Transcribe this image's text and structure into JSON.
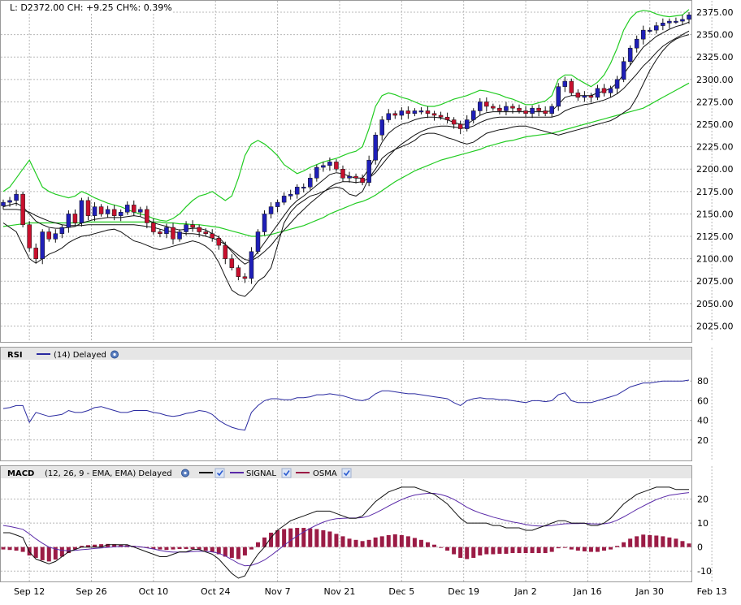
{
  "header": {
    "quote": "L: D2372.00 CH: +9.25 CH%: 0.39%"
  },
  "rsi_header": {
    "name": "RSI",
    "params": "(14) Delayed"
  },
  "macd_header": {
    "name": "MACD",
    "params": "(12, 26, 9 - EMA, EMA) Delayed",
    "signal_label": "SIGNAL",
    "osma_label": "OSMA"
  },
  "colors": {
    "up_candle": "#1f1fb8",
    "down_candle": "#c8102e",
    "bollinger": "#22cc22",
    "ma": "#111111",
    "rsi_line": "#2a2aa0",
    "macd_line": "#111111",
    "signal_line": "#5a2aa8",
    "osma_bar": "#9b1b45",
    "grid": "#b8b8b8"
  },
  "chart_data": [
    {
      "type": "candlestick",
      "title": "",
      "x_tick_labels": [
        "Sep 12",
        "Sep 26",
        "Oct 10",
        "Oct 24",
        "Nov 7",
        "Nov 21",
        "Dec 5",
        "Dec 19",
        "Jan 2",
        "Jan 16",
        "Jan 30",
        "Feb 13"
      ],
      "y_ticks": [
        2025,
        2050,
        2075,
        2100,
        2125,
        2150,
        2175,
        2200,
        2225,
        2250,
        2275,
        2300,
        2325,
        2350,
        2375
      ],
      "y_tick_labels": [
        "2025.00",
        "2050.00",
        "2075.00",
        "2100.00",
        "2125.00",
        "2150.00",
        "2175.00",
        "2200.00",
        "2225.00",
        "2250.00",
        "2275.00",
        "2300.00",
        "2325.00",
        "2350.00",
        "2375.00"
      ],
      "ylim": [
        2010,
        2385
      ],
      "grid": true,
      "legend": "none",
      "close": [
        2163,
        2165,
        2172,
        2138,
        2112,
        2100,
        2130,
        2122,
        2128,
        2135,
        2150,
        2140,
        2165,
        2148,
        2158,
        2150,
        2155,
        2148,
        2152,
        2160,
        2152,
        2155,
        2140,
        2130,
        2128,
        2135,
        2122,
        2130,
        2138,
        2135,
        2130,
        2128,
        2123,
        2115,
        2100,
        2090,
        2080,
        2078,
        2108,
        2130,
        2150,
        2158,
        2163,
        2170,
        2172,
        2180,
        2180,
        2190,
        2202,
        2204,
        2208,
        2200,
        2190,
        2192,
        2190,
        2185,
        2210,
        2238,
        2255,
        2262,
        2260,
        2265,
        2262,
        2265,
        2265,
        2262,
        2260,
        2258,
        2255,
        2250,
        2245,
        2255,
        2265,
        2275,
        2270,
        2268,
        2265,
        2270,
        2268,
        2265,
        2262,
        2268,
        2265,
        2262,
        2270,
        2292,
        2298,
        2285,
        2280,
        2282,
        2280,
        2290,
        2285,
        2290,
        2300,
        2320,
        2335,
        2345,
        2355,
        2355,
        2360,
        2363,
        2365,
        2365,
        2367,
        2372
      ],
      "bollinger_upper": [
        2175,
        2180,
        2190,
        2200,
        2210,
        2195,
        2180,
        2175,
        2172,
        2170,
        2168,
        2170,
        2175,
        2172,
        2168,
        2165,
        2162,
        2160,
        2158,
        2155,
        2152,
        2150,
        2148,
        2145,
        2143,
        2142,
        2145,
        2150,
        2158,
        2165,
        2170,
        2172,
        2175,
        2170,
        2165,
        2170,
        2190,
        2215,
        2228,
        2232,
        2228,
        2222,
        2215,
        2205,
        2200,
        2195,
        2198,
        2202,
        2205,
        2208,
        2210,
        2212,
        2215,
        2218,
        2220,
        2225,
        2245,
        2270,
        2282,
        2285,
        2283,
        2280,
        2278,
        2275,
        2272,
        2270,
        2270,
        2272,
        2275,
        2278,
        2280,
        2282,
        2285,
        2288,
        2287,
        2285,
        2283,
        2280,
        2278,
        2275,
        2272,
        2272,
        2274,
        2276,
        2282,
        2300,
        2305,
        2305,
        2300,
        2296,
        2292,
        2297,
        2305,
        2318,
        2335,
        2355,
        2368,
        2375,
        2377,
        2376,
        2373,
        2371,
        2370,
        2371,
        2372,
        2378
      ],
      "bollinger_lower": [
        2140,
        2135,
        2130,
        2115,
        2100,
        2095,
        2100,
        2105,
        2108,
        2112,
        2118,
        2122,
        2125,
        2126,
        2128,
        2130,
        2132,
        2133,
        2130,
        2125,
        2120,
        2118,
        2115,
        2112,
        2110,
        2112,
        2114,
        2116,
        2118,
        2120,
        2118,
        2114,
        2108,
        2096,
        2080,
        2065,
        2060,
        2058,
        2065,
        2075,
        2080,
        2090,
        2115,
        2140,
        2152,
        2160,
        2165,
        2170,
        2172,
        2175,
        2178,
        2180,
        2178,
        2172,
        2170,
        2175,
        2190,
        2200,
        2212,
        2218,
        2222,
        2225,
        2228,
        2232,
        2238,
        2240,
        2240,
        2238,
        2235,
        2233,
        2230,
        2228,
        2230,
        2235,
        2240,
        2242,
        2244,
        2245,
        2247,
        2248,
        2248,
        2246,
        2244,
        2242,
        2240,
        2238,
        2240,
        2242,
        2244,
        2246,
        2248,
        2250,
        2252,
        2254,
        2258,
        2263,
        2268,
        2280,
        2295,
        2310,
        2322,
        2332,
        2340,
        2345,
        2348,
        2350
      ],
      "ma_fast": [
        2158,
        2160,
        2162,
        2158,
        2150,
        2142,
        2138,
        2135,
        2134,
        2134,
        2135,
        2136,
        2140,
        2142,
        2144,
        2145,
        2146,
        2146,
        2146,
        2147,
        2148,
        2147,
        2144,
        2140,
        2138,
        2136,
        2134,
        2132,
        2133,
        2134,
        2134,
        2132,
        2128,
        2124,
        2116,
        2108,
        2100,
        2094,
        2098,
        2108,
        2118,
        2128,
        2138,
        2148,
        2158,
        2165,
        2170,
        2176,
        2182,
        2188,
        2194,
        2196,
        2195,
        2192,
        2190,
        2190,
        2200,
        2215,
        2230,
        2240,
        2246,
        2250,
        2252,
        2255,
        2257,
        2258,
        2258,
        2257,
        2255,
        2252,
        2250,
        2250,
        2255,
        2260,
        2263,
        2264,
        2264,
        2264,
        2264,
        2264,
        2264,
        2264,
        2264,
        2264,
        2265,
        2272,
        2280,
        2282,
        2282,
        2282,
        2282,
        2285,
        2287,
        2290,
        2296,
        2306,
        2316,
        2326,
        2336,
        2342,
        2348,
        2352,
        2356,
        2359,
        2361,
        2364
      ],
      "ma_mid": [
        2155,
        2155,
        2155,
        2154,
        2152,
        2148,
        2145,
        2142,
        2140,
        2138,
        2137,
        2137,
        2137,
        2138,
        2138,
        2138,
        2138,
        2138,
        2138,
        2138,
        2138,
        2137,
        2136,
        2135,
        2133,
        2131,
        2130,
        2129,
        2128,
        2128,
        2127,
        2125,
        2123,
        2120,
        2116,
        2110,
        2104,
        2099,
        2098,
        2102,
        2108,
        2115,
        2124,
        2132,
        2140,
        2148,
        2155,
        2162,
        2168,
        2174,
        2180,
        2184,
        2186,
        2186,
        2185,
        2186,
        2190,
        2196,
        2205,
        2214,
        2222,
        2228,
        2233,
        2238,
        2242,
        2245,
        2247,
        2248,
        2248,
        2247,
        2246,
        2246,
        2248,
        2252,
        2255,
        2257,
        2258,
        2258,
        2258,
        2258,
        2258,
        2258,
        2258,
        2258,
        2258,
        2260,
        2265,
        2268,
        2270,
        2272,
        2273,
        2275,
        2277,
        2280,
        2284,
        2290,
        2298,
        2306,
        2315,
        2322,
        2330,
        2337,
        2342,
        2346,
        2350,
        2354
      ],
      "ma_slow": [
        2136,
        2137,
        2138,
        2139,
        2140,
        2140,
        2140,
        2140,
        2140,
        2140,
        2140,
        2140,
        2140,
        2141,
        2141,
        2141,
        2141,
        2141,
        2141,
        2141,
        2141,
        2141,
        2141,
        2141,
        2141,
        2140,
        2140,
        2139,
        2139,
        2138,
        2138,
        2137,
        2136,
        2135,
        2133,
        2131,
        2129,
        2127,
        2125,
        2125,
        2126,
        2127,
        2129,
        2131,
        2133,
        2135,
        2137,
        2140,
        2143,
        2146,
        2150,
        2153,
        2156,
        2159,
        2162,
        2164,
        2167,
        2171,
        2176,
        2181,
        2186,
        2190,
        2194,
        2198,
        2201,
        2204,
        2207,
        2210,
        2212,
        2214,
        2216,
        2218,
        2220,
        2222,
        2225,
        2227,
        2229,
        2231,
        2232,
        2234,
        2236,
        2237,
        2238,
        2239,
        2240,
        2242,
        2244,
        2246,
        2248,
        2250,
        2252,
        2254,
        2256,
        2258,
        2260,
        2262,
        2264,
        2266,
        2268,
        2272,
        2276,
        2280,
        2284,
        2288,
        2292,
        2296
      ]
    },
    {
      "type": "line",
      "title": "",
      "series": [
        {
          "name": "RSI",
          "values": [
            52,
            53,
            55,
            55,
            38,
            48,
            46,
            44,
            45,
            46,
            50,
            48,
            48,
            50,
            53,
            54,
            52,
            50,
            48,
            48,
            50,
            50,
            50,
            48,
            47,
            45,
            44,
            45,
            47,
            48,
            50,
            49,
            46,
            40,
            36,
            33,
            31,
            30,
            48,
            55,
            60,
            62,
            62,
            61,
            61,
            63,
            63,
            64,
            66,
            66,
            67,
            66,
            65,
            63,
            61,
            60,
            62,
            67,
            70,
            70,
            69,
            68,
            67,
            67,
            66,
            65,
            64,
            63,
            62,
            58,
            55,
            60,
            62,
            63,
            62,
            62,
            61,
            61,
            60,
            59,
            58,
            60,
            60,
            59,
            60,
            66,
            68,
            60,
            58,
            58,
            58,
            60,
            62,
            64,
            66,
            70,
            74,
            76,
            78,
            78,
            79,
            80,
            80,
            80,
            80,
            81
          ]
        }
      ],
      "y_ticks": [
        20,
        40,
        60,
        80
      ],
      "ylim": [
        0,
        100
      ],
      "grid": true
    },
    {
      "type": "line",
      "title": "",
      "series": [
        {
          "name": "MACD",
          "values": [
            6,
            6,
            5,
            4,
            -2,
            -5,
            -6,
            -7,
            -6,
            -4,
            -2,
            -1,
            0,
            0,
            0,
            0,
            1,
            1,
            1,
            1,
            0,
            -1,
            -2,
            -3,
            -4,
            -4,
            -3,
            -2,
            -2,
            -1,
            -1,
            -2,
            -3,
            -5,
            -8,
            -11,
            -13,
            -12,
            -7,
            -3,
            0,
            4,
            7,
            9,
            11,
            12,
            13,
            14,
            15,
            15,
            15,
            14,
            13,
            12,
            12,
            13,
            16,
            19,
            21,
            23,
            24,
            25,
            25,
            25,
            24,
            23,
            22,
            20,
            18,
            15,
            12,
            10,
            10,
            10,
            10,
            9,
            9,
            8,
            8,
            8,
            7,
            7,
            8,
            9,
            10,
            11,
            11,
            10,
            10,
            10,
            9,
            9,
            10,
            12,
            15,
            18,
            20,
            22,
            23,
            24,
            25,
            25,
            25,
            24,
            24,
            24
          ]
        },
        {
          "name": "SIGNAL",
          "values": [
            9,
            8.6,
            8,
            7.4,
            5.5,
            3.4,
            1.6,
            0,
            -0.8,
            -1.4,
            -1.5,
            -1.4,
            -1.1,
            -0.9,
            -0.6,
            -0.4,
            -0.1,
            0.1,
            0.3,
            0.4,
            0.3,
            0.1,
            -0.3,
            -0.8,
            -1.4,
            -1.9,
            -2.1,
            -2.1,
            -2.1,
            -1.9,
            -1.7,
            -1.8,
            -2,
            -2.6,
            -3.7,
            -5.2,
            -6.8,
            -7.8,
            -7.6,
            -6.7,
            -5.4,
            -3.5,
            -1.4,
            0.7,
            2.8,
            4.6,
            6.3,
            7.8,
            9.2,
            10.4,
            11.3,
            11.8,
            12,
            12.1,
            12.1,
            12.3,
            13,
            14.2,
            15.6,
            17.1,
            18.5,
            19.8,
            20.9,
            21.7,
            22.1,
            22.4,
            22.4,
            21.9,
            21.1,
            19.9,
            18.3,
            16.6,
            15.3,
            14.2,
            13.4,
            12.5,
            11.8,
            11.1,
            10.5,
            10,
            9.4,
            9,
            8.8,
            8.8,
            9,
            9.4,
            9.7,
            9.8,
            9.8,
            9.9,
            9.7,
            9.6,
            9.7,
            10.2,
            11.2,
            12.6,
            14.1,
            15.7,
            17.1,
            18.5,
            19.8,
            20.8,
            21.6,
            22,
            22.4,
            22.7
          ]
        },
        {
          "name": "OSMA",
          "values": [
            -1,
            -1.2,
            -1.5,
            -2,
            -3.5,
            -4.5,
            -5.5,
            -6,
            -5.2,
            -4,
            -2.5,
            -1,
            0.5,
            0.8,
            1,
            1.2,
            1.3,
            1.2,
            1,
            0.8,
            0.5,
            0.2,
            -0.3,
            -0.8,
            -1,
            -1.2,
            -1,
            -0.8,
            -0.8,
            -0.8,
            -1,
            -1.5,
            -2,
            -3,
            -4,
            -4.5,
            -5,
            -3.5,
            -1,
            2,
            4,
            6,
            7,
            7.5,
            7.8,
            8,
            8,
            7.8,
            7.5,
            7,
            6.5,
            5.5,
            4.5,
            3.5,
            3,
            2.5,
            3,
            4,
            4.5,
            5,
            5.3,
            5,
            4.5,
            3.8,
            3,
            2,
            1,
            0,
            -1.5,
            -3,
            -4.5,
            -5,
            -4.5,
            -3.5,
            -3,
            -3,
            -2.8,
            -2.8,
            -2.5,
            -2.5,
            -2.5,
            -2.5,
            -2.5,
            -2.5,
            -2,
            -0.5,
            -0.2,
            -1,
            -1.5,
            -1.8,
            -2,
            -2,
            -1.5,
            -1,
            0.5,
            2,
            3.5,
            4.5,
            5.2,
            5,
            4.8,
            4.5,
            4,
            3.5,
            2.5,
            1.5
          ]
        }
      ],
      "y_ticks": [
        -10,
        0,
        10,
        20
      ],
      "ylim": [
        -14,
        28
      ],
      "grid": true
    }
  ]
}
